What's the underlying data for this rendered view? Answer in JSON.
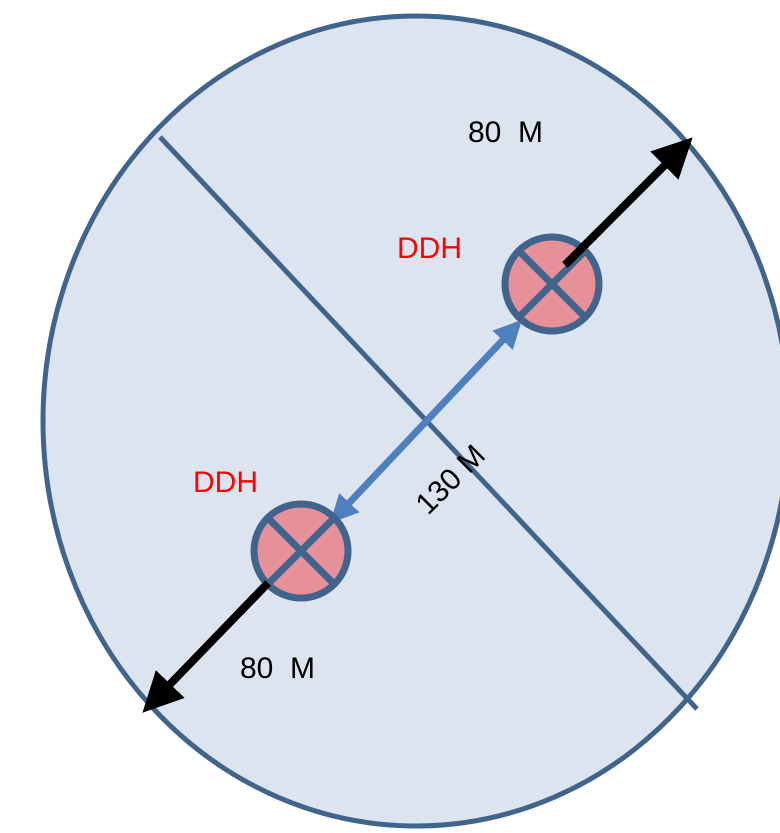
{
  "labels": {
    "top_distance": "80  M",
    "bottom_distance": "80  M",
    "center_distance": "130 M",
    "ddh_top": "DDH",
    "ddh_bottom": "DDH"
  },
  "colors": {
    "circle_fill": "#dce4ef",
    "circle_stroke": "#41648c",
    "marker_fill": "#e6909a",
    "marker_stroke": "#41648c",
    "blue_arrow": "#4f7fbf",
    "black_arrow": "#000000",
    "ddh_text": "#ff0000"
  }
}
